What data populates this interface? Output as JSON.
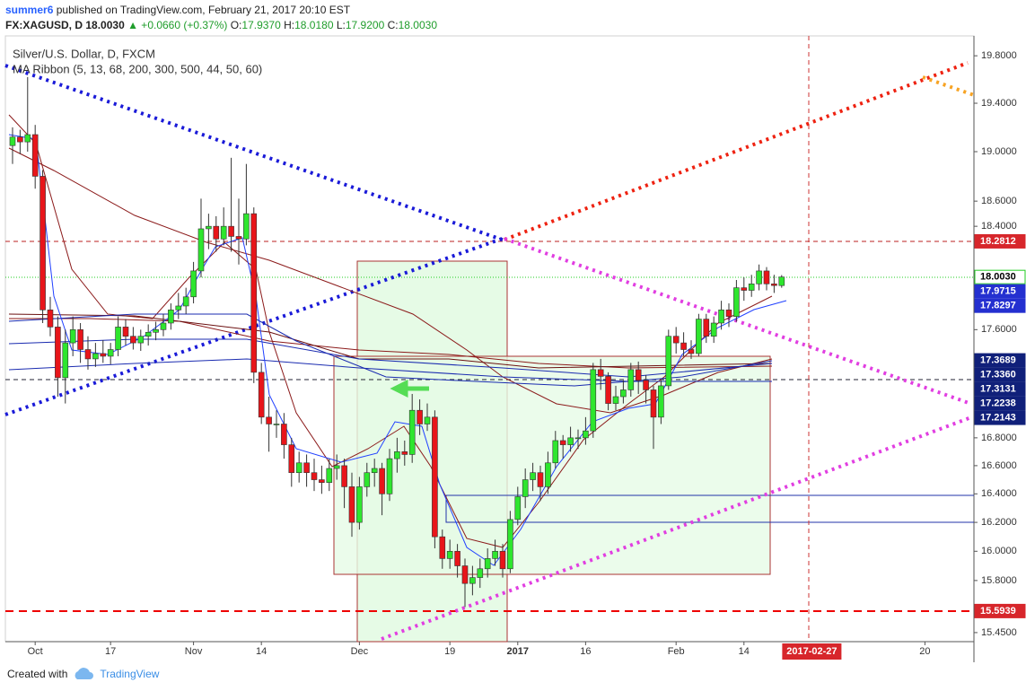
{
  "header": {
    "user": "summer6",
    "published": "published on TradingView.com, February 21, 2017 20:10 EST",
    "symbol": "FX:XAGUSD, D",
    "last": "18.0030",
    "change": "▲ +0.0660 (+0.37%)",
    "ohlc_labels": [
      "O:",
      "H:",
      "L:",
      "C:"
    ],
    "ohlc_values": [
      "17.9370",
      "18.0180",
      "17.9200",
      "18.0030"
    ]
  },
  "footer": {
    "created": "Created with",
    "brand": "TradingView"
  },
  "chart_data": {
    "type": "candlestick",
    "title": "Silver/U.S. Dollar, D, FXCM",
    "subtitle": "MA Ribbon (5, 13, 68, 200, 300, 500, 44, 50, 60)",
    "log": true,
    "grid": false,
    "up_color": "#2ee62e",
    "down_color": "#e8151a",
    "xlim": [
      -0.95,
      127.5
    ],
    "ylim": [
      15.39,
      19.97
    ],
    "xticks": [
      {
        "value": 3,
        "label": "Oct"
      },
      {
        "value": 13,
        "label": "17"
      },
      {
        "value": 24,
        "label": "Nov"
      },
      {
        "value": 33,
        "label": "14"
      },
      {
        "value": 46,
        "label": "Dec"
      },
      {
        "value": 58,
        "label": "19"
      },
      {
        "value": 67,
        "label": "2017"
      },
      {
        "value": 76,
        "label": "16"
      },
      {
        "value": 88,
        "label": "Feb"
      },
      {
        "value": 97,
        "label": "14"
      },
      {
        "value": 121,
        "label": "20"
      }
    ],
    "cursor": {
      "value": 106,
      "label": "2017-02-27"
    },
    "yticks": [
      {
        "value": 19.8,
        "label": "19.8000"
      },
      {
        "value": 19.4,
        "label": "19.4000"
      },
      {
        "value": 19,
        "label": "19.0000"
      },
      {
        "value": 18.6,
        "label": "18.6000"
      },
      {
        "value": 18.4,
        "label": "18.4000"
      },
      {
        "value": 17.6,
        "label": "17.6000"
      },
      {
        "value": 16.8,
        "label": "16.8000"
      },
      {
        "value": 16.6,
        "label": "16.6000"
      },
      {
        "value": 16.4,
        "label": "16.4000"
      },
      {
        "value": 16.2,
        "label": "16.2000"
      },
      {
        "value": 16,
        "label": "16.0000"
      },
      {
        "value": 15.8,
        "label": "15.8000"
      },
      {
        "value": 15.45,
        "label": "15.4500"
      }
    ],
    "price_labels": [
      {
        "value": 18.2812,
        "color": "#d7262b",
        "text_color": "#fff"
      },
      {
        "value": 18.003,
        "label": "18.0030",
        "color": "#fff",
        "text_color": "#000"
      },
      {
        "value": 17.9715,
        "color": "#2430d0",
        "text_color": "#fff"
      },
      {
        "value": 17.8297,
        "color": "#2430d0",
        "text_color": "#fff"
      },
      {
        "value": 17.3689,
        "color": "#10207a",
        "text_color": "#fff"
      },
      {
        "value": 17.336,
        "label": "17.3360",
        "color": "#10207a",
        "text_color": "#fff"
      },
      {
        "value": 17.3131,
        "color": "#10207a",
        "text_color": "#fff"
      },
      {
        "value": 17.2238,
        "color": "#10207a",
        "text_color": "#fff"
      },
      {
        "value": 17.2143,
        "color": "#10207a",
        "text_color": "#fff"
      },
      {
        "value": 15.5939,
        "color": "#d7262b",
        "text_color": "#fff"
      }
    ],
    "x": [
      0,
      1,
      2,
      3,
      4,
      5,
      6,
      7,
      8,
      9,
      10,
      11,
      12,
      13,
      14,
      15,
      16,
      17,
      18,
      19,
      20,
      21,
      22,
      23,
      24,
      25,
      26,
      27,
      28,
      29,
      30,
      31,
      32,
      33,
      34,
      35,
      36,
      37,
      38,
      39,
      40,
      41,
      42,
      43,
      44,
      45,
      46,
      47,
      48,
      49,
      50,
      51,
      52,
      53,
      54,
      55,
      56,
      57,
      58,
      59,
      60,
      61,
      62,
      63,
      64,
      65,
      66,
      67,
      68,
      69,
      70,
      71,
      72,
      73,
      74,
      75,
      76,
      77,
      78,
      79,
      80,
      81,
      82,
      83,
      84,
      85,
      86,
      87,
      88,
      89,
      90,
      91,
      92,
      93,
      94,
      95,
      96,
      97,
      98,
      99,
      100,
      101,
      102
    ],
    "open": [
      19.05,
      19.12,
      19.08,
      19.14,
      18.8,
      17.75,
      17.62,
      17.24,
      17.5,
      17.6,
      17.45,
      17.38,
      17.42,
      17.4,
      17.45,
      17.62,
      17.55,
      17.5,
      17.55,
      17.58,
      17.6,
      17.65,
      17.75,
      17.78,
      17.85,
      18.05,
      18.38,
      18.4,
      18.3,
      18.4,
      18.32,
      18.3,
      18.5,
      17.28,
      16.95,
      16.9,
      16.9,
      16.75,
      16.55,
      16.62,
      16.55,
      16.5,
      16.48,
      16.58,
      16.6,
      16.45,
      16.2,
      16.45,
      16.55,
      16.58,
      16.4,
      16.65,
      16.7,
      16.68,
      17,
      16.9,
      16.95,
      16.1,
      15.95,
      16,
      15.9,
      15.78,
      15.82,
      15.88,
      15.95,
      16,
      15.88,
      16.22,
      16.38,
      16.5,
      16.55,
      16.45,
      16.62,
      16.78,
      16.75,
      16.8,
      16.8,
      16.85,
      17.3,
      17.25,
      17.05,
      17.1,
      17.15,
      17.3,
      17.22,
      17.15,
      16.95,
      17.18,
      17.55,
      17.5,
      17.45,
      17.42,
      17.68,
      17.55,
      17.65,
      17.75,
      17.7,
      17.92,
      17.9,
      17.95,
      18.05,
      17.95,
      17.937
    ],
    "high": [
      19.2,
      19.18,
      19.62,
      19.22,
      18.85,
      17.85,
      17.7,
      17.6,
      17.7,
      17.65,
      17.55,
      17.5,
      17.52,
      17.5,
      17.7,
      17.68,
      17.62,
      17.6,
      17.64,
      17.66,
      17.72,
      17.8,
      17.88,
      17.92,
      18.12,
      18.62,
      18.5,
      18.48,
      18.55,
      18.95,
      18.62,
      18.9,
      18.55,
      17.35,
      17.1,
      17,
      16.98,
      16.8,
      16.7,
      16.68,
      16.65,
      16.6,
      16.65,
      16.68,
      16.65,
      16.55,
      16.52,
      16.62,
      16.65,
      16.62,
      16.72,
      16.8,
      16.78,
      17.12,
      17.08,
      17.05,
      17,
      16.15,
      16.08,
      16.05,
      15.95,
      15.9,
      15.95,
      16.02,
      16.08,
      16.05,
      16.28,
      16.45,
      16.58,
      16.62,
      16.6,
      16.7,
      16.85,
      16.82,
      16.88,
      16.86,
      16.95,
      17.35,
      17.38,
      17.28,
      17.18,
      17.22,
      17.35,
      17.36,
      17.26,
      17.18,
      17.22,
      17.6,
      17.62,
      17.58,
      17.52,
      17.72,
      17.72,
      17.7,
      17.82,
      17.8,
      17.98,
      18,
      18.02,
      18.1,
      18.08,
      18.02,
      18.018
    ],
    "low": [
      18.9,
      18.98,
      19,
      18.7,
      17.65,
      17.55,
      17.1,
      17.05,
      17.4,
      17.35,
      17.3,
      17.32,
      17.35,
      17.34,
      17.4,
      17.48,
      17.45,
      17.44,
      17.48,
      17.52,
      17.55,
      17.6,
      17.68,
      17.72,
      17.8,
      18,
      18.22,
      18.2,
      18.25,
      18.2,
      18.1,
      18.25,
      17.2,
      16.9,
      16.7,
      16.8,
      16.65,
      16.45,
      16.48,
      16.45,
      16.42,
      16.4,
      16.42,
      16.5,
      16.3,
      16.1,
      16.15,
      16.38,
      16.45,
      16.25,
      16.35,
      16.55,
      16.6,
      16.62,
      16.82,
      16.85,
      16.02,
      15.88,
      15.88,
      15.82,
      15.62,
      15.7,
      15.75,
      15.82,
      15.9,
      15.82,
      15.85,
      16.18,
      16.3,
      16.42,
      16.35,
      16.4,
      16.58,
      16.65,
      16.7,
      16.72,
      16.75,
      16.8,
      17.15,
      17,
      17,
      17.05,
      17.1,
      17.12,
      17.05,
      16.72,
      16.9,
      17.15,
      17.42,
      17.4,
      17.38,
      17.4,
      17.5,
      17.5,
      17.6,
      17.62,
      17.66,
      17.82,
      17.85,
      17.9,
      17.9,
      17.88,
      17.92
    ],
    "close": [
      19.12,
      19.08,
      19.14,
      18.8,
      17.75,
      17.62,
      17.24,
      17.5,
      17.6,
      17.45,
      17.38,
      17.42,
      17.4,
      17.45,
      17.62,
      17.55,
      17.5,
      17.55,
      17.58,
      17.6,
      17.65,
      17.75,
      17.78,
      17.85,
      18.05,
      18.38,
      18.4,
      18.3,
      18.4,
      18.32,
      18.3,
      18.5,
      17.28,
      16.95,
      16.9,
      16.9,
      16.75,
      16.55,
      16.62,
      16.55,
      16.5,
      16.48,
      16.58,
      16.6,
      16.45,
      16.2,
      16.45,
      16.55,
      16.58,
      16.4,
      16.65,
      16.7,
      16.68,
      17,
      16.9,
      16.95,
      16.1,
      15.95,
      16,
      15.9,
      15.78,
      15.82,
      15.88,
      15.95,
      16,
      15.88,
      16.22,
      16.38,
      16.5,
      16.55,
      16.45,
      16.62,
      16.78,
      16.75,
      16.8,
      16.8,
      16.85,
      17.3,
      17.25,
      17.05,
      17.1,
      17.15,
      17.3,
      17.22,
      17.15,
      16.95,
      17.18,
      17.55,
      17.5,
      17.45,
      17.42,
      17.68,
      17.55,
      17.65,
      17.75,
      17.7,
      17.92,
      17.9,
      17.95,
      18.05,
      17.95,
      17.937,
      18.003
    ]
  }
}
